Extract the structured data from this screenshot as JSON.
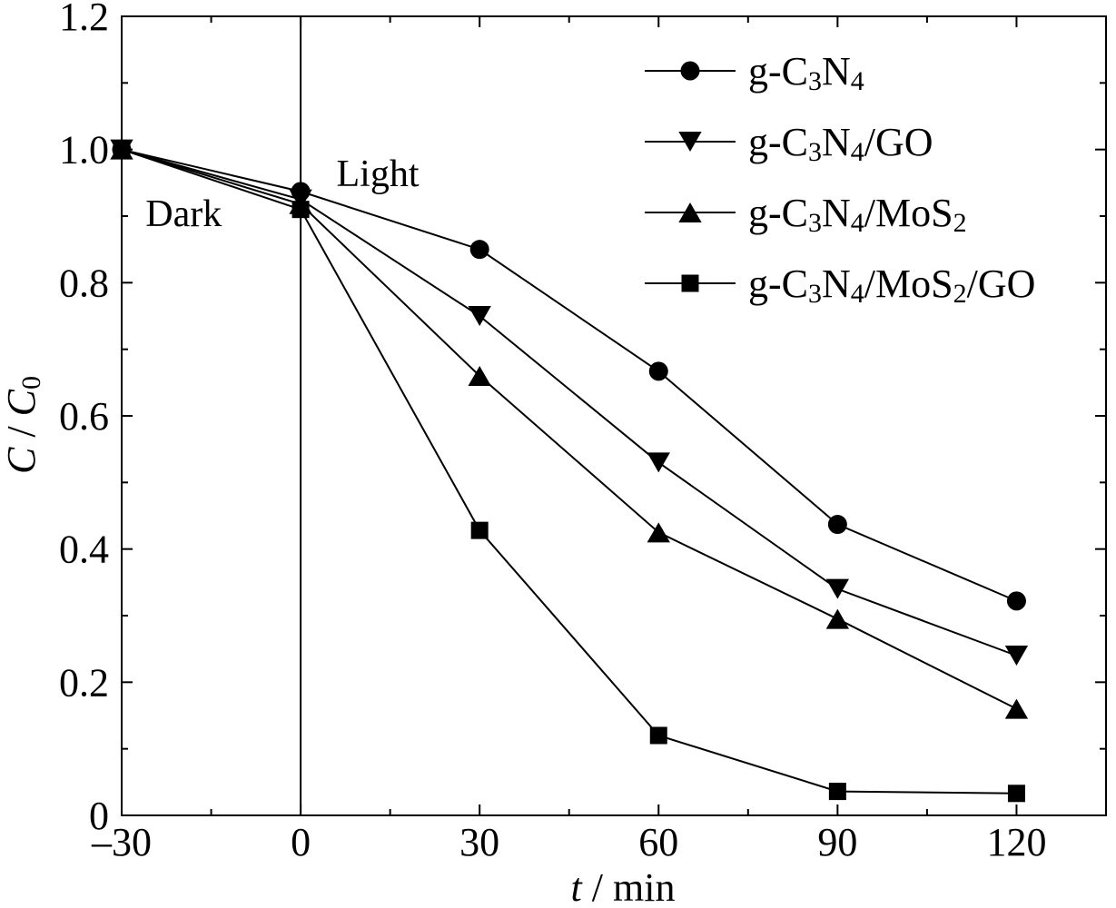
{
  "chart_data": {
    "type": "line",
    "title": "",
    "xlabel": {
      "var": "t",
      "unit": "min"
    },
    "ylabel": {
      "num": "C",
      "den": "C",
      "den_sub": "0"
    },
    "xlim": [
      -30,
      135
    ],
    "ylim": [
      0,
      1.2
    ],
    "x_ticks": [
      -30,
      0,
      30,
      60,
      90,
      120
    ],
    "x_tick_labels": [
      "–30",
      "0",
      "30",
      "60",
      "90",
      "120"
    ],
    "y_ticks": [
      0,
      0.2,
      0.4,
      0.6,
      0.8,
      1.0,
      1.2
    ],
    "y_tick_labels": [
      "0",
      "0.2",
      "0.4",
      "0.6",
      "0.8",
      "1.0",
      "1.2"
    ],
    "x_minor_ticks": [
      -15,
      15,
      45,
      75,
      105
    ],
    "y_minor_ticks": [
      0.1,
      0.3,
      0.5,
      0.7,
      0.9,
      1.1
    ],
    "grid": false,
    "legend_position": "top-right",
    "vertical_line_x": 0,
    "annotations": [
      {
        "text": "Dark",
        "x": -26,
        "y": 0.885
      },
      {
        "text": "Light",
        "x": 6,
        "y": 0.945
      }
    ],
    "x": [
      -30,
      0,
      30,
      60,
      90,
      120
    ],
    "series": [
      {
        "name": "g-C3N4",
        "name_parts": [
          [
            "g-C",
            ""
          ],
          [
            "3",
            "sub"
          ],
          [
            "N",
            ""
          ],
          [
            "4",
            "sub"
          ]
        ],
        "marker": "circle",
        "values": [
          1.0,
          0.937,
          0.85,
          0.667,
          0.437,
          0.322
        ]
      },
      {
        "name": "g-C3N4/GO",
        "name_parts": [
          [
            "g-C",
            ""
          ],
          [
            "3",
            "sub"
          ],
          [
            "N",
            ""
          ],
          [
            "4",
            "sub"
          ],
          [
            "/GO",
            ""
          ]
        ],
        "marker": "triangle-down",
        "values": [
          1.0,
          0.925,
          0.75,
          0.53,
          0.34,
          0.24
        ]
      },
      {
        "name": "g-C3N4/MoS2",
        "name_parts": [
          [
            "g-C",
            ""
          ],
          [
            "3",
            "sub"
          ],
          [
            "N",
            ""
          ],
          [
            "4",
            "sub"
          ],
          [
            "/MoS",
            ""
          ],
          [
            "2",
            "sub"
          ]
        ],
        "marker": "triangle-up",
        "values": [
          1.0,
          0.918,
          0.66,
          0.425,
          0.295,
          0.16
        ]
      },
      {
        "name": "g-C3N4/MoS2/GO",
        "name_parts": [
          [
            "g-C",
            ""
          ],
          [
            "3",
            "sub"
          ],
          [
            "N",
            ""
          ],
          [
            "4",
            "sub"
          ],
          [
            "/MoS",
            ""
          ],
          [
            "2",
            "sub"
          ],
          [
            "/GO",
            ""
          ]
        ],
        "marker": "square",
        "values": [
          1.0,
          0.91,
          0.428,
          0.12,
          0.036,
          0.033
        ]
      }
    ]
  }
}
